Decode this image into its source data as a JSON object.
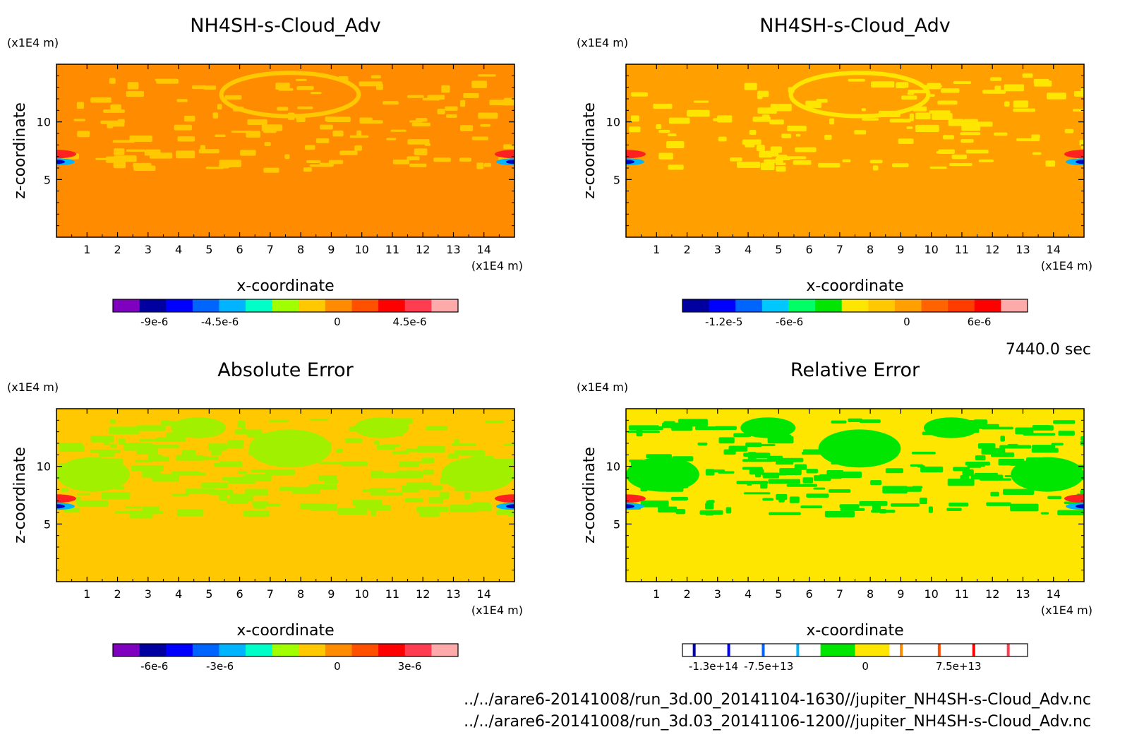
{
  "figure": {
    "time_label": "7440.0 sec",
    "file_paths": [
      "../../arare6-20141008/run_3d.00_20141104-1630//jupiter_NH4SH-s-Cloud_Adv.nc",
      "../../arare6-20141008/run_3d.03_20141106-1200//jupiter_NH4SH-s-Cloud_Adv.nc"
    ]
  },
  "chart_data": [
    {
      "type": "heatmap",
      "title": "NH4SH-s-Cloud_Adv",
      "xlabel": "x-coordinate",
      "ylabel": "z-coordinate",
      "x_unit": "(x1E4 m)",
      "y_unit": "(x1E4 m)",
      "x_ticks": [
        1,
        2,
        3,
        4,
        5,
        6,
        7,
        8,
        9,
        10,
        11,
        12,
        13,
        14
      ],
      "y_ticks": [
        5,
        10
      ],
      "xlim": [
        0,
        15
      ],
      "ylim": [
        0,
        15
      ],
      "background_color": "#ff8c00",
      "patch_color": "#ffc800",
      "colorbar": {
        "colors": [
          "#8000c0",
          "#0000a0",
          "#0000ff",
          "#0064ff",
          "#00b4ff",
          "#00ffc8",
          "#a0ff00",
          "#ffc800",
          "#ff8c00",
          "#ff5000",
          "#ff0000",
          "#ff3c50",
          "#ffaaaa"
        ],
        "tick_labels": [
          "-9e-6",
          "-4.5e-6",
          "0",
          "4.5e-6"
        ]
      }
    },
    {
      "type": "heatmap",
      "title": "NH4SH-s-Cloud_Adv",
      "xlabel": "x-coordinate",
      "ylabel": "z-coordinate",
      "x_unit": "(x1E4 m)",
      "y_unit": "(x1E4 m)",
      "x_ticks": [
        1,
        2,
        3,
        4,
        5,
        6,
        7,
        8,
        9,
        10,
        11,
        12,
        13,
        14
      ],
      "y_ticks": [
        5,
        10
      ],
      "xlim": [
        0,
        15
      ],
      "ylim": [
        0,
        15
      ],
      "background_color": "#ffa000",
      "patch_color": "#ffe600",
      "colorbar": {
        "colors": [
          "#0000a0",
          "#0000ff",
          "#0064ff",
          "#00c8ff",
          "#00ff64",
          "#00e600",
          "#ffe600",
          "#ffc800",
          "#ffa000",
          "#ff6400",
          "#ff3c00",
          "#ff0000",
          "#ffaaaa"
        ],
        "tick_labels": [
          "-1.2e-5",
          "-6e-6",
          "0",
          "6e-6"
        ]
      }
    },
    {
      "type": "heatmap",
      "title": "Absolute Error",
      "xlabel": "x-coordinate",
      "ylabel": "z-coordinate",
      "x_unit": "(x1E4 m)",
      "y_unit": "(x1E4 m)",
      "x_ticks": [
        1,
        2,
        3,
        4,
        5,
        6,
        7,
        8,
        9,
        10,
        11,
        12,
        13,
        14
      ],
      "y_ticks": [
        5,
        10
      ],
      "xlim": [
        0,
        15
      ],
      "ylim": [
        0,
        15
      ],
      "background_color": "#ffc800",
      "patch_color": "#a0f000",
      "colorbar": {
        "colors": [
          "#8000c0",
          "#0000a0",
          "#0000ff",
          "#0064ff",
          "#00b4ff",
          "#00ffc8",
          "#a0ff00",
          "#ffc800",
          "#ff8c00",
          "#ff5000",
          "#ff0000",
          "#ff3c50",
          "#ffaaaa"
        ],
        "tick_labels": [
          "-6e-6",
          "-3e-6",
          "0",
          "3e-6"
        ]
      }
    },
    {
      "type": "heatmap",
      "title": "Relative Error",
      "xlabel": "x-coordinate",
      "ylabel": "z-coordinate",
      "x_unit": "(x1E4 m)",
      "y_unit": "(x1E4 m)",
      "x_ticks": [
        1,
        2,
        3,
        4,
        5,
        6,
        7,
        8,
        9,
        10,
        11,
        12,
        13,
        14
      ],
      "y_ticks": [
        5,
        10
      ],
      "xlim": [
        0,
        15
      ],
      "ylim": [
        0,
        15
      ],
      "background_color": "#ffe600",
      "patch_color": "#00e600",
      "colorbar": {
        "colors": [
          "#ffffff",
          "#ffffff",
          "#ffffff",
          "#ffffff",
          "#00e600",
          "#ffe600",
          "#ffffff",
          "#ffffff",
          "#ffffff",
          "#ffffff"
        ],
        "line_colors": [
          "#0000a0",
          "#0000ff",
          "#0064ff",
          "#00b4ff",
          "#ff8c00",
          "#ff5000",
          "#ff0000",
          "#ff3c50"
        ],
        "tick_labels": [
          "-1.3e+14",
          "-7.5e+13",
          "0",
          "7.5e+13"
        ]
      }
    }
  ]
}
